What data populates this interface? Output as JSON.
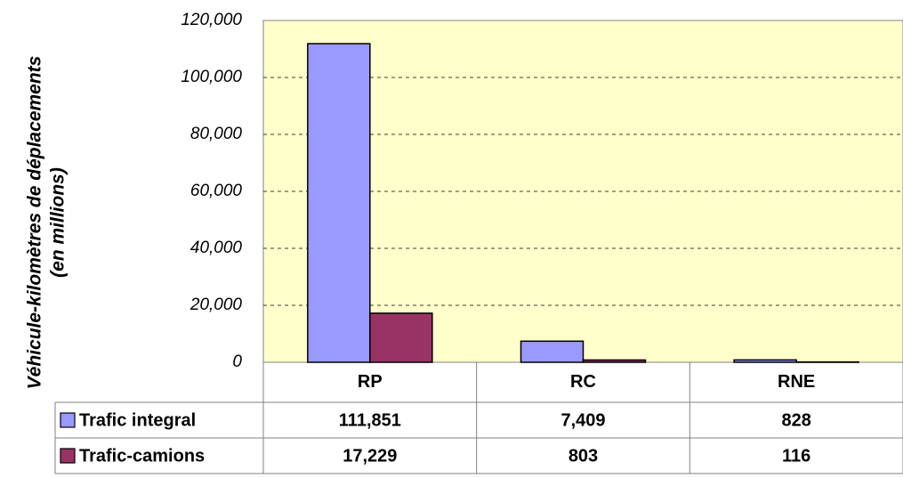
{
  "chart_data": {
    "type": "bar",
    "ylabel": [
      "Véhicule-kilomètres de déplacements",
      "(en millions)"
    ],
    "categories": [
      "RP",
      "RC",
      "RNE"
    ],
    "series": [
      {
        "name": "Trafic integral",
        "color": "#9999ff",
        "values": [
          111851,
          7409,
          828
        ],
        "value_labels": [
          "111,851",
          "7,409",
          "828"
        ]
      },
      {
        "name": "Trafic-camions",
        "color": "#993366",
        "values": [
          17229,
          803,
          116
        ],
        "value_labels": [
          "17,229",
          "803",
          "116"
        ]
      }
    ],
    "ylim": [
      0,
      120000
    ],
    "yticks": [
      0,
      {
        "value": 20000,
        "label": "20,000"
      },
      {
        "value": 40000,
        "label": "40,000"
      },
      {
        "value": 60000,
        "label": "60,000"
      },
      {
        "value": 80000,
        "label": "80,000"
      },
      {
        "value": 100000,
        "label": "100,000"
      },
      {
        "value": 120000,
        "label": "120,000"
      }
    ],
    "grid": true,
    "plot_color": "#ffffcc"
  }
}
